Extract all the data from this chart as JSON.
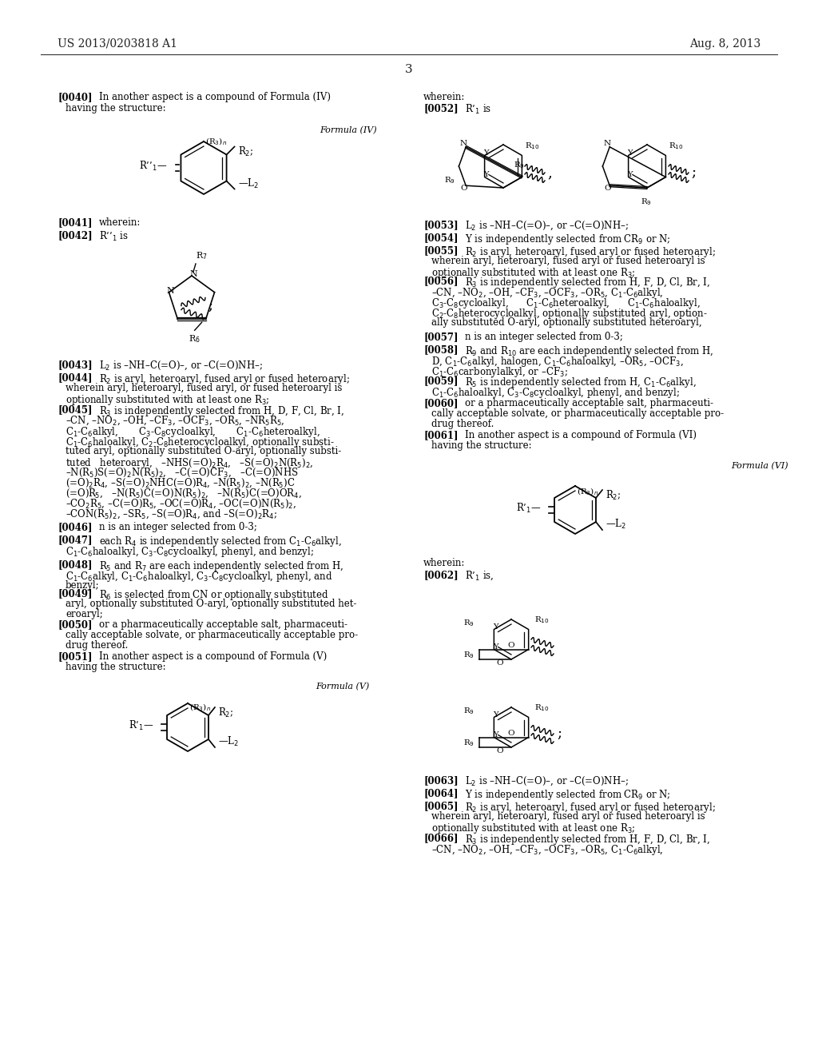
{
  "bg": "#ffffff",
  "header_left": "US 2013/0203818 A1",
  "header_right": "Aug. 8, 2013",
  "page_num": "3"
}
